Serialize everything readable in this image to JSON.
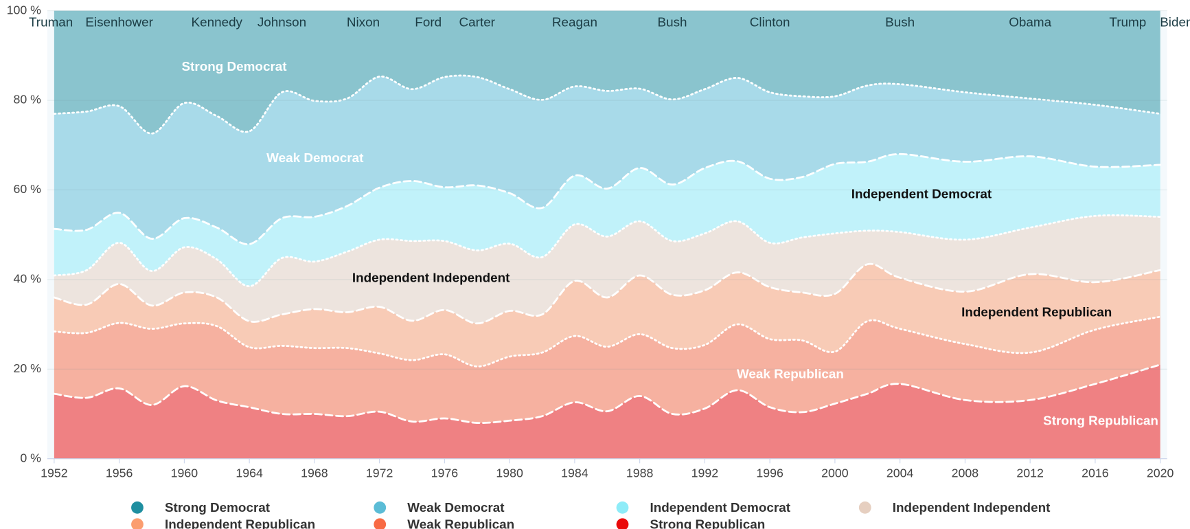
{
  "chart_data": {
    "type": "stacked_area",
    "x": [
      1952,
      1954,
      1956,
      1958,
      1960,
      1962,
      1964,
      1966,
      1968,
      1970,
      1972,
      1974,
      1976,
      1978,
      1980,
      1982,
      1984,
      1986,
      1988,
      1990,
      1992,
      1994,
      1996,
      1998,
      2000,
      2002,
      2004,
      2008,
      2012,
      2016,
      2020
    ],
    "series": [
      {
        "name": "Strong Democrat",
        "color": "#1f8fa0",
        "values": [
          23.0,
          22.5,
          21.3,
          27.4,
          20.6,
          23.5,
          26.9,
          18.2,
          20.1,
          19.6,
          14.7,
          17.5,
          14.8,
          14.8,
          17.5,
          19.9,
          16.9,
          17.9,
          17.4,
          19.8,
          17.5,
          15.0,
          18.2,
          19.1,
          19.1,
          16.7,
          16.4,
          18.2,
          19.6,
          21.0,
          23.0
        ]
      },
      {
        "name": "Weak Democrat",
        "color": "#5bbcd6",
        "values": [
          25.7,
          26.4,
          23.8,
          23.5,
          25.7,
          24.9,
          25.2,
          28.1,
          25.9,
          24.0,
          24.8,
          20.5,
          24.6,
          24.2,
          23.2,
          24.1,
          19.9,
          21.8,
          17.7,
          19.0,
          17.6,
          18.6,
          19.3,
          18.0,
          15.1,
          17.0,
          15.6,
          15.5,
          12.9,
          13.8,
          11.4
        ]
      },
      {
        "name": "Independent Democrat",
        "color": "#8eecf8",
        "values": [
          10.4,
          9.0,
          6.7,
          7.2,
          6.5,
          7.1,
          9.4,
          8.9,
          10.0,
          10.2,
          11.6,
          13.4,
          12.0,
          14.5,
          11.3,
          11.0,
          10.9,
          10.7,
          11.9,
          12.6,
          14.6,
          13.4,
          14.3,
          13.5,
          15.5,
          15.4,
          17.4,
          17.4,
          15.9,
          11.0,
          11.6
        ]
      },
      {
        "name": "Independent Independent",
        "color": "#e6cfc0",
        "values": [
          4.9,
          7.7,
          9.2,
          7.7,
          10.1,
          8.5,
          7.8,
          12.6,
          10.6,
          13.5,
          15.0,
          17.8,
          15.4,
          16.3,
          15.0,
          12.8,
          12.6,
          13.6,
          12.1,
          12.0,
          12.7,
          11.4,
          9.9,
          12.3,
          13.5,
          7.5,
          10.2,
          11.6,
          10.4,
          14.8,
          11.9
        ]
      },
      {
        "name": "Independent Republican",
        "color": "#fb9d6f",
        "values": [
          7.6,
          6.3,
          8.7,
          5.2,
          6.9,
          6.4,
          5.8,
          7.0,
          8.7,
          8.0,
          10.4,
          8.8,
          9.9,
          9.6,
          10.2,
          8.5,
          12.3,
          11.0,
          13.1,
          11.9,
          12.2,
          11.6,
          11.6,
          10.7,
          12.9,
          12.7,
          11.4,
          11.7,
          17.5,
          10.6,
          10.4
        ]
      },
      {
        "name": "Weak Republican",
        "color": "#f86a44",
        "values": [
          13.9,
          14.5,
          14.6,
          17.0,
          14.0,
          16.6,
          13.4,
          15.2,
          14.7,
          15.2,
          13.0,
          13.7,
          14.3,
          12.6,
          14.3,
          14.2,
          14.8,
          14.4,
          13.8,
          14.7,
          14.2,
          14.7,
          15.2,
          16.0,
          11.6,
          16.2,
          12.3,
          12.5,
          10.6,
          12.1,
          10.7
        ]
      },
      {
        "name": "Strong Republican",
        "color": "#ea0a0a",
        "values": [
          14.5,
          13.6,
          15.7,
          12.0,
          16.2,
          13.0,
          11.5,
          10.0,
          10.0,
          9.5,
          10.5,
          8.3,
          9.0,
          8.0,
          8.5,
          9.5,
          12.6,
          10.6,
          14.0,
          10.0,
          11.2,
          15.3,
          11.5,
          10.4,
          12.3,
          14.5,
          16.7,
          13.1,
          13.1,
          16.7,
          21.0
        ]
      }
    ],
    "xlim": [
      1952,
      2020
    ],
    "xticks": [
      1952,
      1956,
      1960,
      1964,
      1968,
      1972,
      1976,
      1980,
      1984,
      1988,
      1992,
      1996,
      2000,
      2004,
      2008,
      2012,
      2016,
      2020
    ],
    "ylim": [
      0,
      100
    ],
    "yticks": [
      {
        "value": 0,
        "label": "0 %"
      },
      {
        "value": 20,
        "label": "20 %"
      },
      {
        "value": 40,
        "label": "40 %"
      },
      {
        "value": 60,
        "label": "60 %"
      },
      {
        "value": 80,
        "label": "80 %"
      },
      {
        "value": 100,
        "label": "100 %"
      }
    ],
    "grid": true,
    "legend": "bottom",
    "annotations": [
      {
        "label": "Truman",
        "x": 1951.8
      },
      {
        "label": "Eisenhower",
        "x": 1956
      },
      {
        "label": "Kennedy",
        "x": 1962
      },
      {
        "label": "Johnson",
        "x": 1966
      },
      {
        "label": "Nixon",
        "x": 1971
      },
      {
        "label": "Ford",
        "x": 1975
      },
      {
        "label": "Carter",
        "x": 1978
      },
      {
        "label": "Reagan",
        "x": 1984
      },
      {
        "label": "Bush",
        "x": 1990
      },
      {
        "label": "Clinton",
        "x": 1996
      },
      {
        "label": "Bush",
        "x": 2004
      },
      {
        "label": "Obama",
        "x": 2012
      },
      {
        "label": "Trump",
        "x": 2018
      },
      {
        "label": "Biden",
        "x": 2021
      }
    ]
  }
}
